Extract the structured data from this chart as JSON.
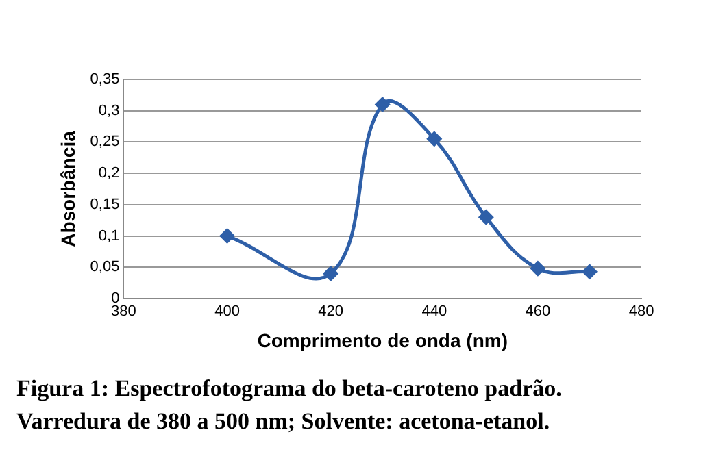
{
  "chart_data": {
    "type": "line",
    "xlabel": "Comprimento de onda (nm)",
    "ylabel": "Absorbância",
    "x": [
      400,
      420,
      430,
      440,
      450,
      460,
      470
    ],
    "series": [
      {
        "color": "#2e5fa8",
        "values": [
          0.1,
          0.04,
          0.31,
          0.255,
          0.13,
          0.048,
          0.043
        ]
      }
    ],
    "xlim": [
      380,
      480
    ],
    "xticks": [
      380,
      400,
      420,
      440,
      460,
      480
    ],
    "ylim": [
      0,
      0.35
    ],
    "yticks": [
      {
        "value": 0,
        "label": "0"
      },
      {
        "value": 0.05,
        "label": "0,05"
      },
      {
        "value": 0.1,
        "label": "0,1"
      },
      {
        "value": 0.15,
        "label": "0,15"
      },
      {
        "value": 0.2,
        "label": "0,2"
      },
      {
        "value": 0.25,
        "label": "0,25"
      },
      {
        "value": 0.3,
        "label": "0,3"
      },
      {
        "value": 0.35,
        "label": "0,35"
      }
    ],
    "grid": "y",
    "legend": false,
    "marker": "diamond",
    "line_style": "solid",
    "annotations": [
      "Figura 1: Espectrofotograma do beta-caroteno padrão.",
      "Varredura de 380 a 500 nm; Solvente: acetona-etanol."
    ]
  }
}
